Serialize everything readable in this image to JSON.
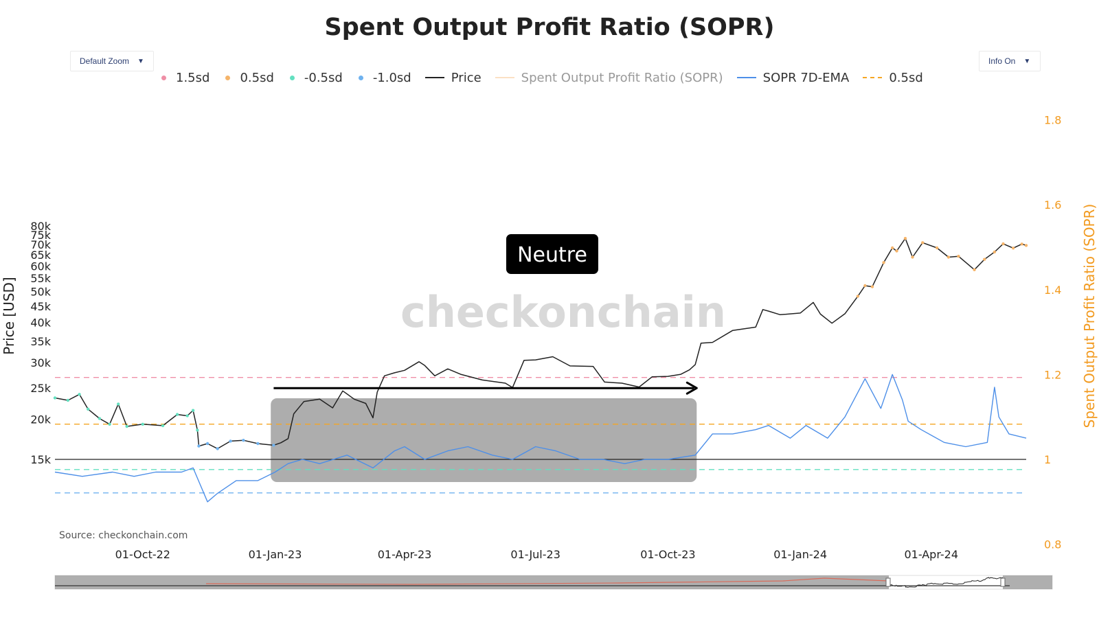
{
  "controls": {
    "zoom_label": "Default Zoom",
    "info_label": "Info On",
    "dropdown_glyph": "▼"
  },
  "source": "Source: checkonchain.com",
  "watermark": "checkonchain",
  "annotation": {
    "label": "Neutre"
  },
  "legend": [
    {
      "label": "1.5sd",
      "kind": "dot",
      "color": "#ef8fa6"
    },
    {
      "label": "0.5sd",
      "kind": "dot",
      "color": "#f5b46a"
    },
    {
      "label": "-0.5sd",
      "kind": "dot",
      "color": "#63e0c0"
    },
    {
      "label": "-1.0sd",
      "kind": "dot",
      "color": "#6fb2ef"
    },
    {
      "label": "Price",
      "kind": "line",
      "color": "#222222"
    },
    {
      "label": "Spent Output Profit Ratio (SOPR)",
      "kind": "line",
      "color": "#fbe0c4",
      "muted": true
    },
    {
      "label": "SOPR 7D-EMA",
      "kind": "line",
      "color": "#4d8fe8"
    },
    {
      "label": "0.5sd",
      "kind": "dash",
      "color": "#f5a623"
    }
  ],
  "chart_data": {
    "type": "line",
    "title": "Spent Output Profit Ratio (SOPR)",
    "ylabel": "Price [USD]",
    "y2label": "Spent Output Profit Ratio (SOPR)",
    "yscale": "log",
    "y_ticks": [
      "80k",
      "75k",
      "70k",
      "65k",
      "60k",
      "55k",
      "50k",
      "45k",
      "40k",
      "35k",
      "30k",
      "25k",
      "20k",
      "15k"
    ],
    "y2_ticks": [
      "1.8",
      "1.6",
      "1.4",
      "1.2",
      "1",
      "0.8"
    ],
    "y2lim": [
      0.8,
      1.8
    ],
    "x_ticks": [
      "01-Oct-22",
      "01-Jan-23",
      "01-Apr-23",
      "01-Jul-23",
      "01-Oct-23",
      "01-Jan-24",
      "01-Apr-24"
    ],
    "xlim": [
      "2022-08-01",
      "2024-06-06"
    ],
    "neutral_band": {
      "from": "2022-12-29",
      "to": "2023-10-21"
    },
    "arrow": {
      "from": "2022-12-31",
      "to": "2023-10-21",
      "price": 25000
    },
    "reference_lines": [
      {
        "name": "1.5sd",
        "sopr": 1.193,
        "color": "#ef8fa6",
        "style": "dashed"
      },
      {
        "name": "0.5sd",
        "sopr": 1.083,
        "color": "#f5a623",
        "style": "dashed"
      },
      {
        "name": "1",
        "sopr": 1.0,
        "color": "#222222",
        "style": "solid"
      },
      {
        "name": "-0.5sd",
        "sopr": 0.976,
        "color": "#63e0c0",
        "style": "dashed"
      },
      {
        "name": "-1.0sd",
        "sopr": 0.921,
        "color": "#6fb2ef",
        "style": "dashed"
      }
    ],
    "series": [
      {
        "name": "Price",
        "color": "#222222",
        "x": [
          "2022-08-01",
          "2022-08-10",
          "2022-08-18",
          "2022-08-24",
          "2022-09-01",
          "2022-09-08",
          "2022-09-14",
          "2022-09-20",
          "2022-10-01",
          "2022-10-15",
          "2022-10-25",
          "2022-11-01",
          "2022-11-05",
          "2022-11-08",
          "2022-11-09",
          "2022-11-15",
          "2022-11-22",
          "2022-12-01",
          "2022-12-10",
          "2022-12-20",
          "2022-12-31",
          "2023-01-05",
          "2023-01-10",
          "2023-01-14",
          "2023-01-21",
          "2023-02-01",
          "2023-02-10",
          "2023-02-17",
          "2023-02-25",
          "2023-03-05",
          "2023-03-10",
          "2023-03-13",
          "2023-03-18",
          "2023-03-25",
          "2023-04-01",
          "2023-04-11",
          "2023-04-15",
          "2023-04-22",
          "2023-05-01",
          "2023-05-10",
          "2023-05-25",
          "2023-06-10",
          "2023-06-15",
          "2023-06-23",
          "2023-07-01",
          "2023-07-13",
          "2023-07-25",
          "2023-08-10",
          "2023-08-18",
          "2023-08-30",
          "2023-09-11",
          "2023-09-20",
          "2023-10-01",
          "2023-10-10",
          "2023-10-16",
          "2023-10-20",
          "2023-10-24",
          "2023-11-01",
          "2023-11-15",
          "2023-12-01",
          "2023-12-06",
          "2023-12-10",
          "2023-12-18",
          "2024-01-01",
          "2024-01-10",
          "2024-01-15",
          "2024-01-23",
          "2024-02-01",
          "2024-02-10",
          "2024-02-15",
          "2024-02-20",
          "2024-02-28",
          "2024-03-05",
          "2024-03-08",
          "2024-03-14",
          "2024-03-19",
          "2024-03-26",
          "2024-04-05",
          "2024-04-13",
          "2024-04-20",
          "2024-05-01",
          "2024-05-08",
          "2024-05-15",
          "2024-05-21",
          "2024-05-28",
          "2024-06-03",
          "2024-06-06"
        ],
        "y": [
          23300,
          22900,
          23900,
          21500,
          20100,
          19300,
          22300,
          19000,
          19300,
          19100,
          20700,
          20500,
          21300,
          18500,
          16500,
          16800,
          16200,
          17100,
          17200,
          16800,
          16600,
          16900,
          17400,
          20800,
          22700,
          23100,
          21700,
          24500,
          23100,
          22400,
          20200,
          24300,
          27300,
          27900,
          28400,
          30200,
          29400,
          27300,
          28700,
          27600,
          26500,
          25900,
          25100,
          30500,
          30600,
          31300,
          29300,
          29200,
          26100,
          25900,
          25200,
          27100,
          27200,
          27600,
          28500,
          29600,
          34500,
          34700,
          37800,
          38700,
          43900,
          43400,
          42300,
          42800,
          46200,
          42500,
          39800,
          42600,
          48300,
          52100,
          51700,
          61500,
          68300,
          66800,
          73100,
          63900,
          70900,
          68300,
          63900,
          64300,
          58400,
          62900,
          66300,
          70300,
          68200,
          70200,
          69500
        ]
      },
      {
        "name": "SOPR 7D-EMA",
        "color": "#4d8fe8",
        "x": [
          "2022-08-01",
          "2022-08-20",
          "2022-09-10",
          "2022-09-25",
          "2022-10-10",
          "2022-10-28",
          "2022-11-05",
          "2022-11-10",
          "2022-11-15",
          "2022-11-22",
          "2022-12-05",
          "2022-12-20",
          "2023-01-01",
          "2023-01-10",
          "2023-01-20",
          "2023-02-01",
          "2023-02-20",
          "2023-03-10",
          "2023-03-25",
          "2023-04-01",
          "2023-04-15",
          "2023-05-01",
          "2023-05-15",
          "2023-06-01",
          "2023-06-15",
          "2023-07-01",
          "2023-07-15",
          "2023-08-01",
          "2023-08-17",
          "2023-09-01",
          "2023-09-15",
          "2023-10-01",
          "2023-10-20",
          "2023-11-01",
          "2023-11-15",
          "2023-12-01",
          "2023-12-10",
          "2023-12-25",
          "2024-01-05",
          "2024-01-20",
          "2024-02-01",
          "2024-02-15",
          "2024-02-26",
          "2024-03-05",
          "2024-03-12",
          "2024-03-16",
          "2024-03-25",
          "2024-04-10",
          "2024-04-25",
          "2024-05-10",
          "2024-05-15",
          "2024-05-18",
          "2024-05-25",
          "2024-06-06"
        ],
        "y": [
          0.97,
          0.96,
          0.97,
          0.96,
          0.97,
          0.97,
          0.98,
          0.94,
          0.9,
          0.92,
          0.95,
          0.95,
          0.97,
          0.99,
          1.0,
          0.99,
          1.01,
          0.98,
          1.02,
          1.03,
          1.0,
          1.02,
          1.03,
          1.01,
          1.0,
          1.03,
          1.02,
          1.0,
          1.0,
          0.99,
          1.0,
          1.0,
          1.01,
          1.06,
          1.06,
          1.07,
          1.08,
          1.05,
          1.08,
          1.05,
          1.1,
          1.19,
          1.12,
          1.2,
          1.14,
          1.09,
          1.07,
          1.04,
          1.03,
          1.04,
          1.17,
          1.1,
          1.06,
          1.05
        ]
      }
    ]
  }
}
